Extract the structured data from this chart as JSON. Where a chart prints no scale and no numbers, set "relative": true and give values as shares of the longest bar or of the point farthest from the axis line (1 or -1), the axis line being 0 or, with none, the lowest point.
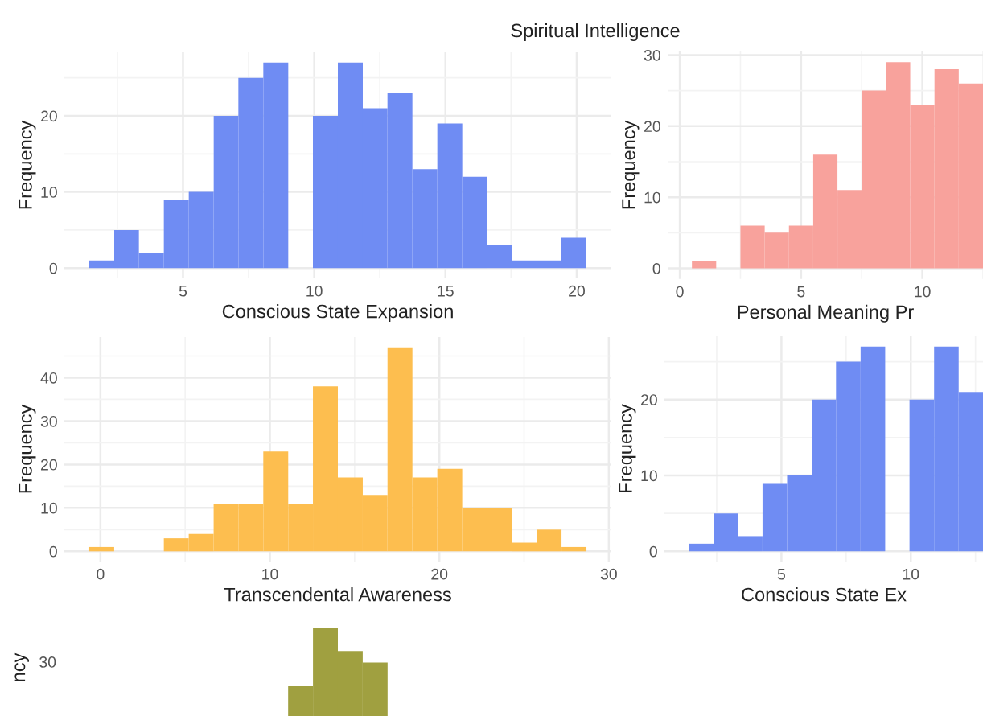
{
  "chart_data": [
    {
      "type": "histogram",
      "title": "Spiritual Intelligence",
      "xlabel": "Conscious State Expansion",
      "ylabel": "Frequency",
      "color": "#6f8cf3",
      "bins": [
        1.43,
        2.38,
        3.32,
        4.27,
        5.22,
        6.17,
        7.11,
        8.06,
        9.01,
        9.95,
        10.9,
        11.85,
        12.79,
        13.74,
        14.69,
        15.64,
        16.58,
        17.53,
        18.48,
        19.42,
        20.37
      ],
      "values": [
        1,
        5,
        2,
        9,
        10,
        20,
        25,
        27,
        0,
        20,
        27,
        21,
        23,
        13,
        19,
        12,
        3,
        1,
        1,
        4
      ],
      "xlim": [
        0.48,
        21.32
      ],
      "ylim": [
        -1.35,
        28.35
      ],
      "xticks": [
        5,
        10,
        15,
        20
      ],
      "yticks": [
        0,
        10,
        20
      ],
      "grid": true
    },
    {
      "type": "histogram",
      "xlabel": "Personal Meaning Pr",
      "ylabel": "Frequency",
      "color": "#f8a29c",
      "bins": [
        0.5,
        1.5,
        2.5,
        3.5,
        4.5,
        5.5,
        6.5,
        7.5,
        8.5,
        9.5,
        10.5,
        11.5,
        12.5
      ],
      "values": [
        1,
        0,
        6,
        5,
        6,
        16,
        11,
        25,
        29,
        23,
        28,
        26
      ],
      "xlim": [
        -0.5,
        12.5
      ],
      "ylim": [
        -1.5,
        30.5
      ],
      "xticks": [
        0,
        5,
        10
      ],
      "yticks": [
        0,
        10,
        20,
        30
      ],
      "grid": true
    },
    {
      "type": "histogram",
      "xlabel": "Transcendental Awareness",
      "ylabel": "Frequency",
      "color": "#fdbe4f",
      "bins": [
        -0.66,
        0.81,
        2.27,
        3.74,
        5.21,
        6.68,
        8.14,
        9.61,
        11.08,
        12.54,
        14.01,
        15.48,
        16.94,
        18.41,
        19.88,
        21.35,
        22.81,
        24.28,
        25.75,
        27.21,
        28.68
      ],
      "values": [
        1,
        0,
        0,
        3,
        4,
        11,
        11,
        23,
        11,
        38,
        17,
        13,
        47,
        17,
        19,
        10,
        10,
        2,
        5,
        1
      ],
      "xlim": [
        -2.13,
        30.15
      ],
      "ylim": [
        -2.35,
        49.35
      ],
      "xticks": [
        0,
        10,
        20,
        30
      ],
      "yticks": [
        0,
        10,
        20,
        30,
        40
      ],
      "grid": true
    },
    {
      "type": "histogram",
      "xlabel": "Conscious State Ex",
      "ylabel": "Frequency",
      "color": "#6f8cf3",
      "bins": [
        1.43,
        2.38,
        3.32,
        4.27,
        5.22,
        6.17,
        7.11,
        8.06,
        9.01,
        9.95,
        10.9,
        11.85,
        12.79
      ],
      "values": [
        1,
        5,
        2,
        9,
        10,
        20,
        25,
        27,
        0,
        20,
        27,
        21
      ],
      "xlim": [
        0.48,
        12.79
      ],
      "ylim": [
        -1.35,
        28.35
      ],
      "xticks": [
        5,
        10
      ],
      "yticks": [
        0,
        10,
        20
      ],
      "grid": true
    },
    {
      "type": "bar",
      "ylabel": "ncy",
      "color": "#a0a040",
      "categories": [
        null,
        null,
        null,
        null
      ],
      "values": [
        0.34,
        1,
        0.74,
        0.61
      ],
      "relative": true,
      "annotations": [
        "30"
      ]
    }
  ]
}
